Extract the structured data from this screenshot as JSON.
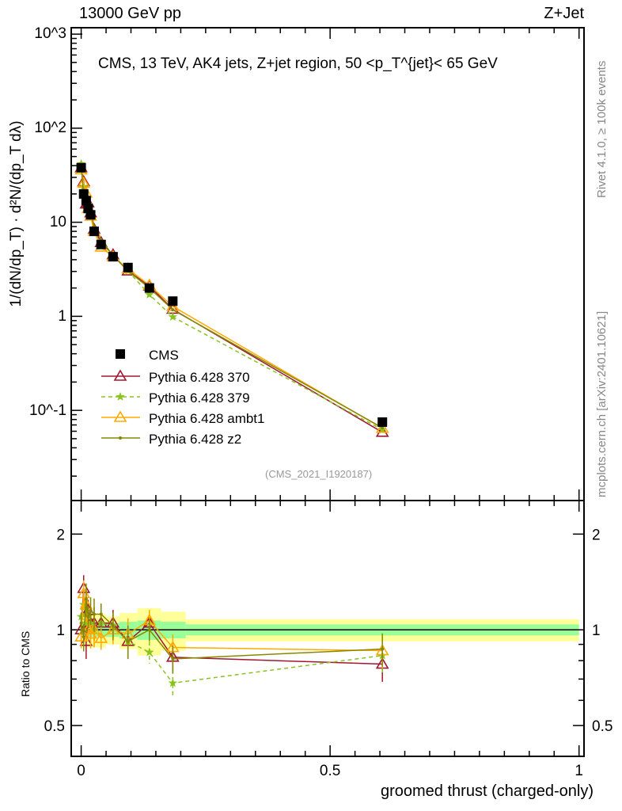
{
  "header": {
    "left": "13000 GeV pp",
    "right": "Z+Jet"
  },
  "side_labels": {
    "rivet": "Rivet 4.1.0, ≥ 100k events",
    "mcplots": "mcplots.cern.ch [arXiv:2401.10621]"
  },
  "chart_data": {
    "type": "line",
    "title": "CMS, 13 TeV, AK4 jets, Z+jet region, 50 <p_T^{jet}< 65 GeV",
    "analysis_tag": "(CMS_2021_I1920187)",
    "xlabel": "groomed thrust (charged-only)",
    "ylabel": "1/(dN/dp_T) · d²N/(dp_T dλ)",
    "ratio_ylabel": "Ratio to CMS",
    "xlim": [
      -0.02,
      1.01
    ],
    "ylim": [
      0.011,
      1170
    ],
    "yscale": "log",
    "ratio_ylim": [
      0.4,
      2.55
    ],
    "x_ticks": [
      "0",
      "0.5",
      "1"
    ],
    "y_ticks": [
      "10^3",
      "10^2",
      "10",
      "1",
      "10^-1"
    ],
    "ratio_ticks": [
      "2",
      "1",
      "0.5"
    ],
    "legend_position": "middle-left",
    "x": [
      0.0,
      0.005,
      0.01,
      0.014,
      0.019,
      0.026,
      0.04,
      0.064,
      0.094,
      0.137,
      0.184,
      0.605
    ],
    "band_edges": [
      0,
      0.0025,
      0.0075,
      0.0125,
      0.0175,
      0.0225,
      0.03,
      0.05,
      0.077,
      0.113,
      0.16,
      0.21,
      1.0
    ],
    "band_stat": [
      0.05,
      0.05,
      0.05,
      0.05,
      0.05,
      0.05,
      0.05,
      0.05,
      0.06,
      0.07,
      0.06,
      0.04
    ],
    "band_total": [
      0.12,
      0.12,
      0.12,
      0.12,
      0.12,
      0.12,
      0.12,
      0.1,
      0.13,
      0.17,
      0.14,
      0.08
    ],
    "cms": {
      "name": "CMS",
      "color": "#000000",
      "values": [
        38,
        20,
        17,
        14,
        12,
        8,
        5.8,
        4.3,
        3.3,
        2.0,
        1.45,
        0.075
      ]
    },
    "series": [
      {
        "name": "Pythia 6.428 370",
        "color": "#a01830",
        "marker": "triangle",
        "dash": "",
        "ratio": [
          1.0,
          1.35,
          0.92,
          1.15,
          1.05,
          1.05,
          1.05,
          1.05,
          0.92,
          1.05,
          0.82,
          0.78
        ]
      },
      {
        "name": "Pythia 6.428 379",
        "color": "#88c420",
        "marker": "star",
        "dash": "5,4",
        "ratio": [
          1.1,
          1.2,
          1.05,
          1.1,
          1.05,
          1.0,
          1.05,
          1.03,
          0.92,
          0.85,
          0.68,
          0.83
        ]
      },
      {
        "name": "Pythia 6.428 ambt1",
        "color": "#ffaa00",
        "marker": "triangle",
        "dash": "",
        "ratio": [
          0.95,
          1.3,
          1.2,
          1.0,
          0.97,
          1.0,
          0.94,
          1.0,
          0.97,
          1.07,
          0.88,
          0.86
        ]
      },
      {
        "name": "Pythia 6.428 z2",
        "color": "#888800",
        "marker": "dot",
        "dash": "",
        "ratio": [
          1.05,
          0.95,
          1.25,
          1.1,
          1.15,
          1.12,
          1.12,
          1.03,
          0.92,
          1.0,
          0.81,
          0.87
        ]
      }
    ]
  }
}
